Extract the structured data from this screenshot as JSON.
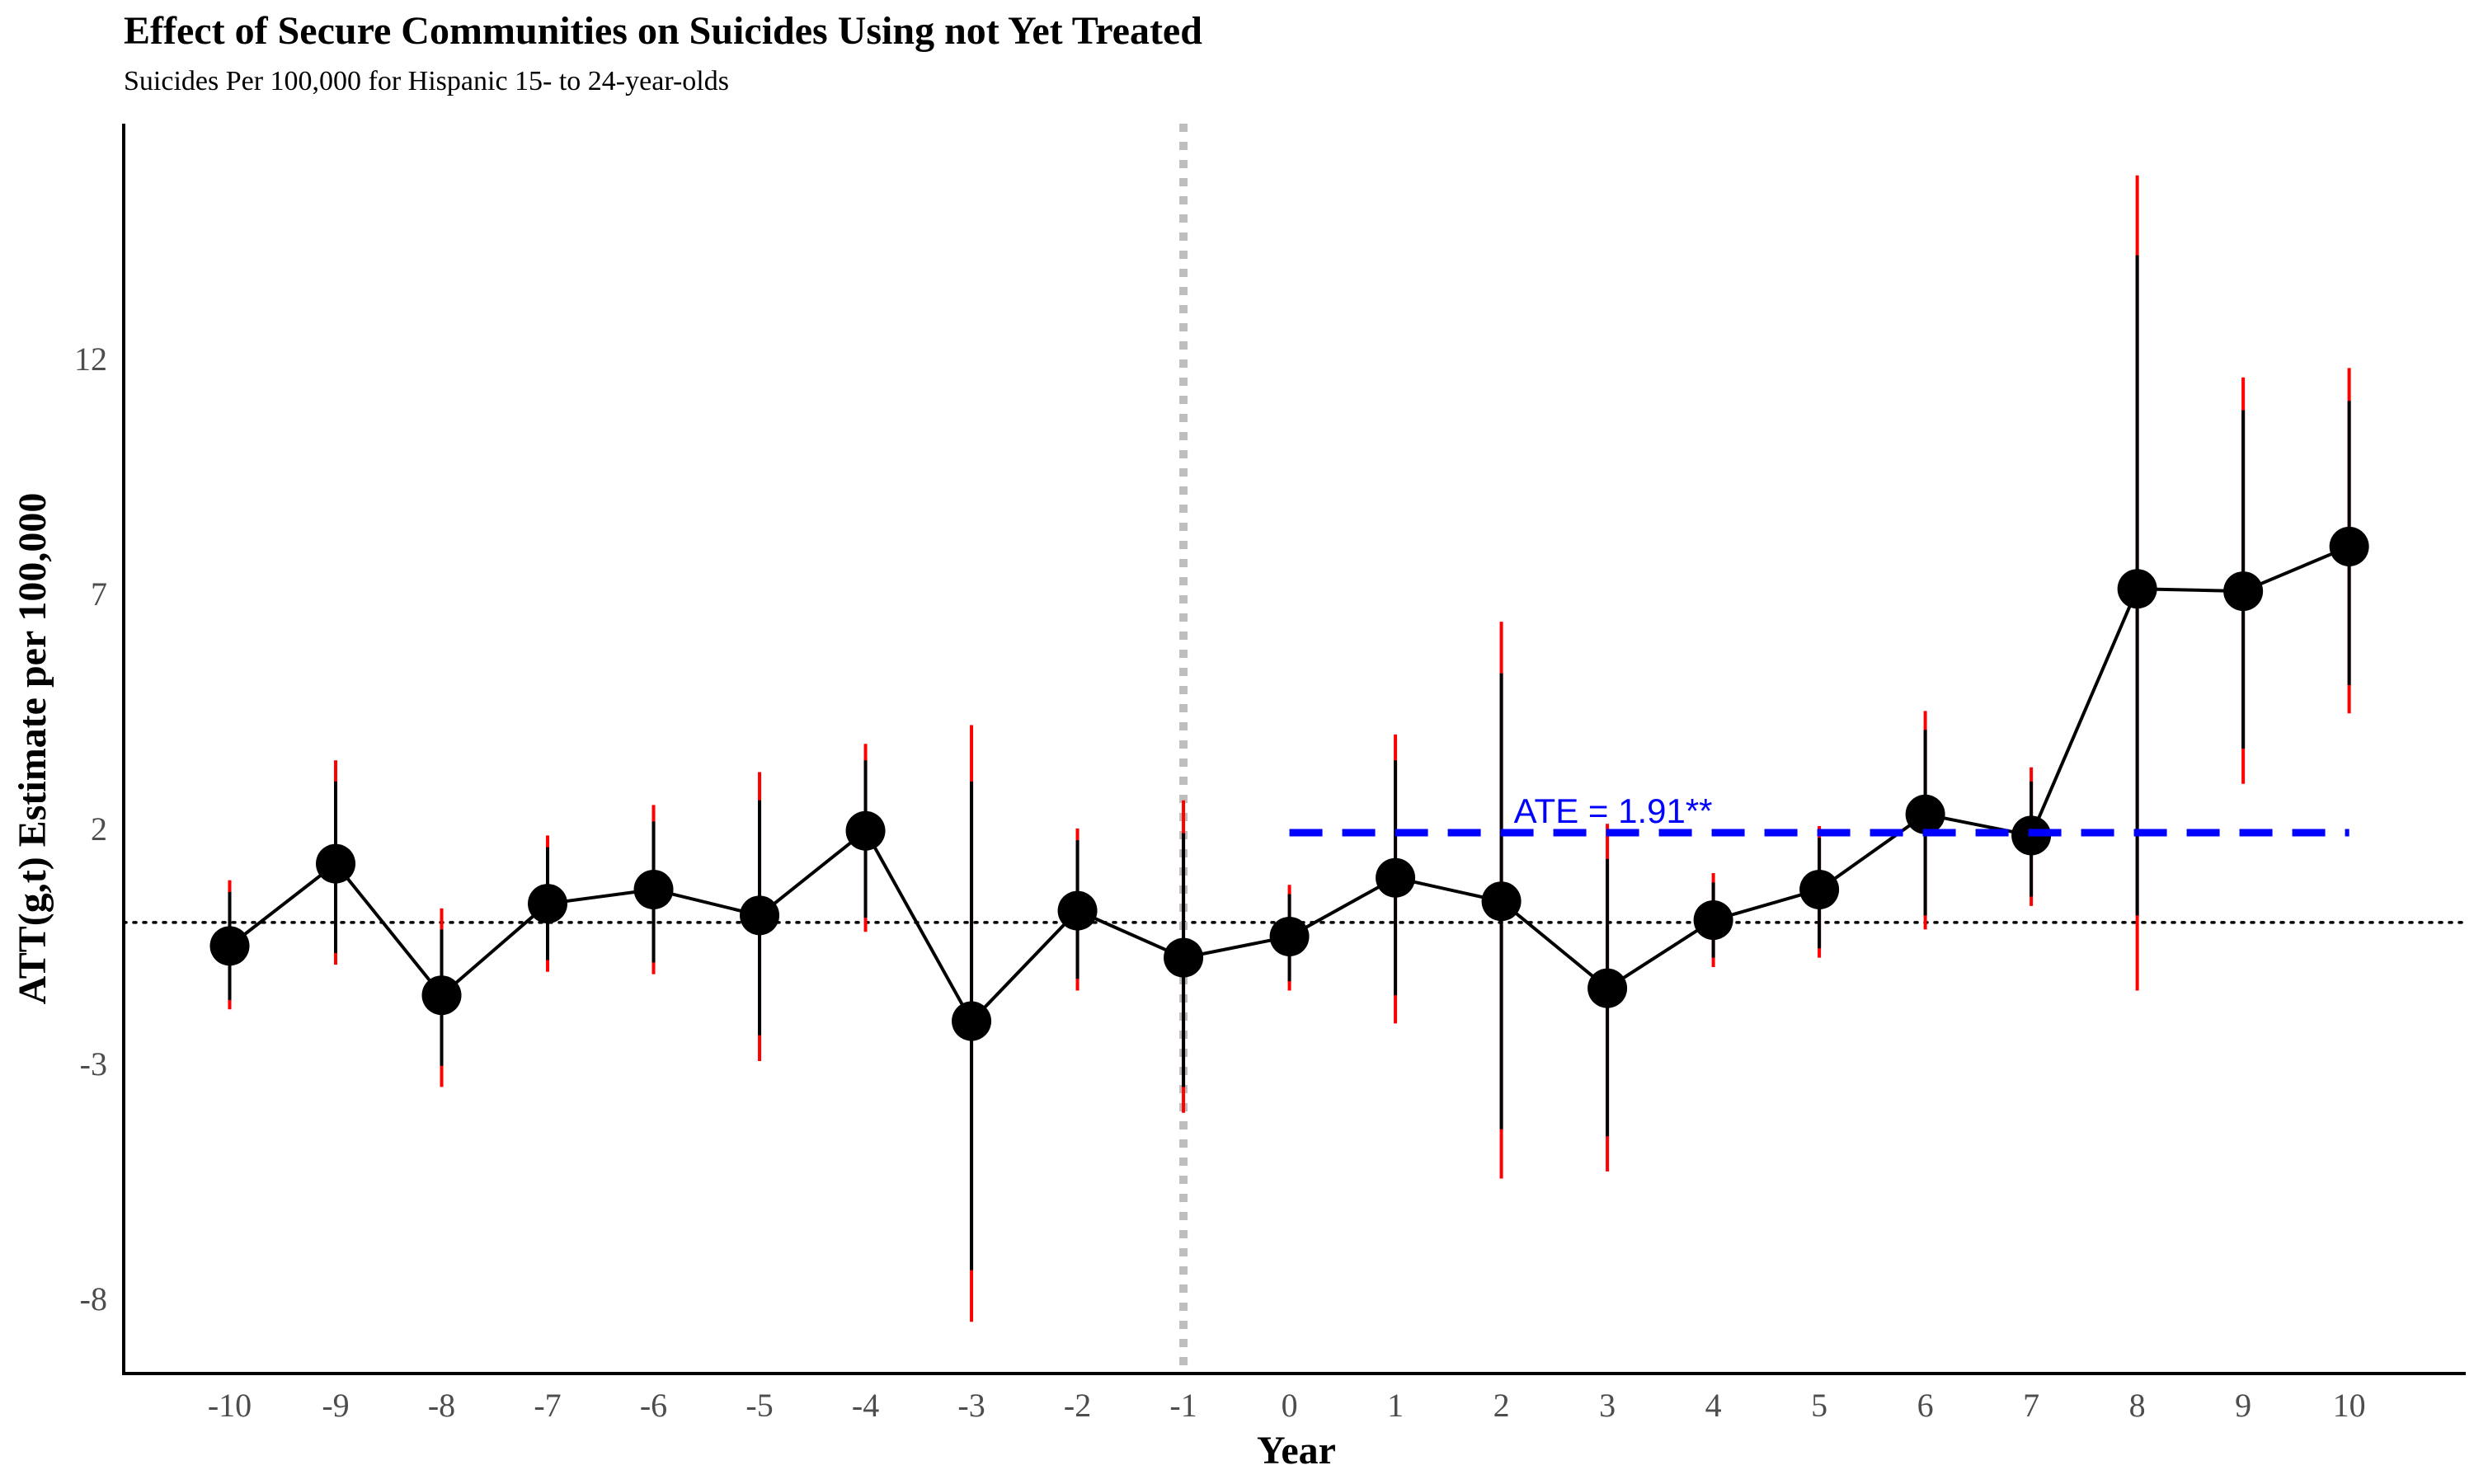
{
  "chart_data": {
    "type": "line",
    "title": "Effect of Secure Communities on Suicides Using not Yet Treated",
    "subtitle": "Suicides Per 100,000 for Hispanic 15- to 24-year-olds",
    "xlabel": "Year",
    "ylabel": "ATT(g,t) Estimate per 100,000",
    "x_ticks": [
      "-10",
      "-9",
      "-8",
      "-7",
      "-6",
      "-5",
      "-4",
      "-3",
      "-2",
      "-1",
      "0",
      "1",
      "2",
      "3",
      "4",
      "5",
      "6",
      "7",
      "8",
      "9",
      "10"
    ],
    "y_ticks": [
      "-8",
      "-3",
      "2",
      "7",
      "12"
    ],
    "xlim": [
      -11,
      11.1
    ],
    "ylim": [
      -9.6,
      17
    ],
    "reference_line_y": 0,
    "treatment_line_x": -1,
    "series": [
      {
        "x": [
          -10,
          -9,
          -8,
          -7,
          -6,
          -5,
          -4,
          -3,
          -2,
          -1,
          0,
          1,
          2,
          3,
          4,
          5,
          6,
          7,
          8,
          9,
          10
        ],
        "y": [
          -0.5,
          1.25,
          -1.55,
          0.4,
          0.7,
          0.15,
          1.95,
          -2.1,
          0.25,
          -0.75,
          -0.3,
          0.95,
          0.45,
          -1.4,
          0.05,
          0.7,
          2.3,
          1.85,
          7.1,
          7.05,
          8.0
        ],
        "ci95_lower": [
          -1.85,
          -0.9,
          -3.5,
          -1.05,
          -1.1,
          -2.95,
          -0.2,
          -8.5,
          -1.45,
          -4.05,
          -1.45,
          -2.15,
          -5.45,
          -5.3,
          -0.95,
          -0.75,
          -0.15,
          0.35,
          -1.45,
          2.95,
          4.45
        ],
        "ci95_upper": [
          0.9,
          3.45,
          0.3,
          1.85,
          2.5,
          3.2,
          3.8,
          4.2,
          2.0,
          2.6,
          0.8,
          4.0,
          6.4,
          2.1,
          1.05,
          2.05,
          4.5,
          3.3,
          15.9,
          11.6,
          11.8
        ],
        "ci90_lower": [
          -1.65,
          -0.65,
          -3.05,
          -0.8,
          -0.85,
          -2.4,
          0.1,
          -7.4,
          -1.2,
          -3.5,
          -1.25,
          -1.55,
          -4.4,
          -4.55,
          -0.75,
          -0.55,
          0.15,
          0.55,
          0.15,
          3.7,
          5.05
        ],
        "ci90_upper": [
          0.65,
          3.0,
          -0.15,
          1.6,
          2.15,
          2.6,
          3.45,
          3.0,
          1.75,
          1.9,
          0.6,
          3.45,
          5.3,
          1.35,
          0.85,
          1.8,
          4.1,
          3.0,
          14.2,
          10.9,
          11.1
        ]
      }
    ],
    "ate": {
      "label": "ATE = 1.91**",
      "value": 1.91,
      "x_from": 0,
      "x_to": 10
    },
    "colors": {
      "points": "#000000",
      "ci_outer": "#ff0000",
      "ci_inner": "#000000",
      "ate": "#0000ff",
      "treatment_line": "#bebebe",
      "zero_line": "#000000",
      "axis": "#000000",
      "tick_label": "#4d4d4d"
    }
  }
}
